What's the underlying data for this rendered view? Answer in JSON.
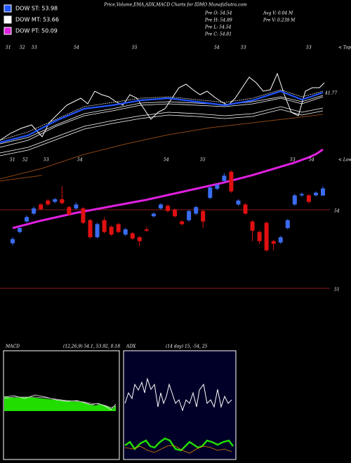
{
  "chart_data": {
    "type": "candlestick",
    "title": "Price,Volume,EMA,ADX,MACD Charts for IDMO MunafaSutra.com",
    "legend": [
      {
        "name": "DOW ST: 53.98",
        "color": "#2255ff"
      },
      {
        "name": "DOW MT: 53.66",
        "color": "#ffffff"
      },
      {
        "name": "DOW PT: 50.09",
        "color": "#e020e0"
      }
    ],
    "stats": [
      "Pre  O: 54.54",
      "Pre  H: 54.89",
      "Pre  L: 54.54",
      "Pre  C: 54.81",
      "Avg V: 0.04  M",
      "Pre  V: 0.239 M"
    ],
    "top_labels": [
      "51",
      "52",
      "53",
      "54",
      "55",
      "54",
      "53",
      "53"
    ],
    "bottom_labels": [
      "51",
      "52",
      "53",
      "54",
      "54",
      "55",
      "53",
      "54"
    ],
    "tops_label": "< Tops",
    "lows_label": "< Lows",
    "upper_value_label": "41.77",
    "open": [
      52.72,
      53.15,
      53.55,
      53.85,
      54.2,
      54.35,
      54.3,
      54.4,
      54.1,
      54.05,
      54.05,
      53.6,
      52.95,
      53.6,
      53.35,
      53.45,
      53.05,
      53.1,
      52.95,
      53.25,
      53.75,
      54.05,
      54.15,
      54.0,
      53.55,
      53.6,
      53.85,
      53.95,
      54.45,
      54.8,
      55.1,
      55.45,
      54.2,
      54.2,
      53.55,
      53.15,
      53.5,
      52.8,
      52.75,
      53.3,
      54.2,
      54.55,
      54.55,
      54.55,
      54.54
    ],
    "high": [
      52.95,
      53.35,
      53.78,
      54.12,
      54.25,
      54.4,
      54.45,
      54.9,
      54.15,
      54.28,
      54.1,
      53.65,
      53.5,
      53.7,
      53.4,
      53.5,
      53.3,
      53.15,
      53.0,
      53.35,
      53.9,
      54.25,
      54.2,
      54.05,
      53.6,
      54.0,
      54.15,
      54.0,
      54.9,
      55.0,
      55.4,
      55.5,
      54.4,
      54.25,
      53.6,
      53.2,
      53.55,
      52.85,
      53.0,
      53.65,
      54.6,
      54.65,
      54.6,
      54.7,
      54.89
    ],
    "low": [
      52.65,
      53.1,
      53.5,
      53.8,
      53.98,
      54.15,
      54.25,
      54.2,
      53.78,
      54.0,
      53.45,
      52.9,
      52.9,
      53.1,
      53.0,
      53.1,
      53.0,
      52.85,
      52.6,
      53.15,
      53.7,
      54.0,
      53.9,
      53.7,
      53.4,
      53.55,
      53.8,
      53.3,
      54.4,
      54.75,
      55.05,
      54.65,
      54.15,
      53.8,
      52.8,
      52.7,
      52.4,
      52.45,
      52.7,
      53.25,
      54.15,
      54.5,
      54.25,
      54.5,
      54.54
    ],
    "close": [
      52.88,
      53.3,
      53.72,
      54.05,
      54.02,
      54.2,
      54.4,
      54.25,
      53.82,
      54.2,
      53.5,
      52.95,
      53.45,
      53.15,
      53.05,
      53.15,
      53.25,
      52.9,
      52.8,
      53.2,
      53.85,
      54.2,
      53.95,
      53.75,
      53.45,
      53.95,
      54.1,
      53.55,
      54.85,
      54.95,
      55.3,
      54.7,
      54.35,
      53.85,
      53.2,
      52.8,
      52.45,
      52.7,
      52.95,
      53.6,
      54.55,
      54.6,
      54.3,
      54.65,
      54.81
    ],
    "ema": [
      53.3,
      53.37,
      53.44,
      53.51,
      53.58,
      53.64,
      53.7,
      53.76,
      53.82,
      53.88,
      53.93,
      53.98,
      54.03,
      54.08,
      54.13,
      54.18,
      54.23,
      54.28,
      54.33,
      54.38,
      54.44,
      54.5,
      54.56,
      54.62,
      54.68,
      54.74,
      54.8,
      54.86,
      54.92,
      54.98,
      55.04,
      55.11,
      55.18,
      55.25,
      55.32,
      55.4,
      55.48,
      55.56,
      55.64,
      55.72,
      55.8,
      55.9,
      56.0,
      56.12,
      56.3
    ],
    "up_color": "#3a6cf0",
    "down_color": "#e01010",
    "ema_color": "#e020e0",
    "ylim": [
      50.49,
      56.65
    ],
    "yticks": [
      51,
      54
    ],
    "macd_label": "MACD",
    "macd_params": "(12,26,9) 54.1, 53.92, 0.18",
    "adx_label": "ADX",
    "adx_params": "(14  day) 15, -54, 25"
  }
}
